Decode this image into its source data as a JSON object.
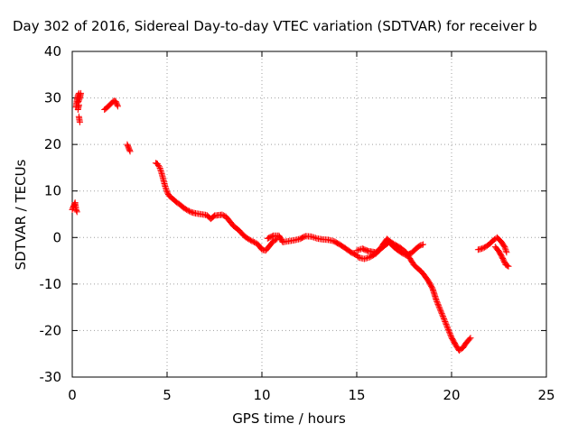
{
  "chart_data": {
    "type": "scatter",
    "title": "Day 302 of 2016, Sidereal Day-to-day VTEC variation (SDTVAR) for receiver b",
    "xlabel": "GPS time / hours",
    "ylabel": "SDTVAR / TECUs",
    "xlim": [
      0,
      25
    ],
    "ylim": [
      -30,
      40
    ],
    "xticks": [
      "0",
      "5",
      "10",
      "15",
      "20",
      "25"
    ],
    "yticks": [
      "40",
      "30",
      "20",
      "10",
      "0",
      "-10",
      "-20",
      "-30"
    ],
    "grid": true,
    "marker": "plus",
    "color": "#ff0000",
    "series": [
      {
        "points": [
          [
            0.0,
            6.0
          ],
          [
            0.05,
            6.5
          ],
          [
            0.1,
            7.0
          ],
          [
            0.15,
            7.5
          ],
          [
            0.2,
            6.0
          ],
          [
            0.25,
            5.5
          ],
          [
            0.2,
            28.0
          ],
          [
            0.25,
            29.5
          ],
          [
            0.3,
            30.5
          ],
          [
            0.35,
            31.0
          ],
          [
            0.3,
            27.5
          ],
          [
            0.35,
            28.5
          ],
          [
            0.3,
            29.0
          ],
          [
            0.4,
            30.0
          ],
          [
            0.45,
            31.0
          ],
          [
            0.35,
            26.0
          ],
          [
            0.4,
            24.8
          ],
          [
            1.7,
            27.5
          ],
          [
            1.8,
            27.8
          ],
          [
            1.9,
            28.2
          ],
          [
            2.0,
            28.6
          ],
          [
            2.1,
            29.0
          ],
          [
            2.2,
            29.4
          ],
          [
            2.3,
            29.2
          ],
          [
            2.4,
            28.2
          ],
          [
            2.9,
            20.0
          ],
          [
            2.95,
            19.5
          ],
          [
            3.0,
            19.0
          ],
          [
            3.05,
            18.5
          ],
          [
            4.4,
            16.0
          ],
          [
            4.5,
            15.8
          ],
          [
            4.6,
            15.2
          ],
          [
            4.7,
            14.0
          ],
          [
            4.8,
            12.5
          ],
          [
            4.9,
            11.0
          ],
          [
            5.0,
            9.8
          ],
          [
            5.1,
            9.0
          ],
          [
            5.3,
            8.3
          ],
          [
            5.5,
            7.6
          ],
          [
            5.7,
            7.0
          ],
          [
            5.9,
            6.3
          ],
          [
            6.1,
            5.8
          ],
          [
            6.3,
            5.4
          ],
          [
            6.5,
            5.2
          ],
          [
            6.8,
            5.0
          ],
          [
            7.1,
            4.8
          ],
          [
            7.3,
            4.0
          ],
          [
            7.5,
            4.7
          ],
          [
            7.7,
            4.8
          ],
          [
            7.9,
            4.9
          ],
          [
            8.1,
            4.5
          ],
          [
            8.3,
            3.5
          ],
          [
            8.5,
            2.5
          ],
          [
            8.8,
            1.5
          ],
          [
            9.0,
            0.6
          ],
          [
            9.2,
            -0.1
          ],
          [
            9.4,
            -0.6
          ],
          [
            9.6,
            -1.0
          ],
          [
            9.8,
            -1.5
          ],
          [
            10.0,
            -2.6
          ],
          [
            10.2,
            -2.8
          ],
          [
            10.4,
            -1.8
          ],
          [
            10.6,
            -0.8
          ],
          [
            10.8,
            -0.3
          ],
          [
            10.3,
            -0.2
          ],
          [
            10.6,
            0.4
          ],
          [
            10.9,
            0.4
          ],
          [
            11.1,
            -1.0
          ],
          [
            11.4,
            -0.8
          ],
          [
            11.7,
            -0.6
          ],
          [
            12.0,
            -0.3
          ],
          [
            12.3,
            0.3
          ],
          [
            12.6,
            0.2
          ],
          [
            12.9,
            -0.2
          ],
          [
            13.2,
            -0.4
          ],
          [
            13.5,
            -0.5
          ],
          [
            13.8,
            -0.8
          ],
          [
            14.1,
            -1.5
          ],
          [
            14.4,
            -2.3
          ],
          [
            14.7,
            -3.2
          ],
          [
            15.0,
            -3.8
          ],
          [
            15.1,
            -4.3
          ],
          [
            15.4,
            -4.6
          ],
          [
            15.7,
            -4.2
          ],
          [
            16.0,
            -3.5
          ],
          [
            16.2,
            -2.7
          ],
          [
            16.4,
            -1.4
          ],
          [
            16.6,
            -0.3
          ],
          [
            16.8,
            -1.0
          ],
          [
            17.0,
            -1.5
          ],
          [
            17.3,
            -2.2
          ],
          [
            17.6,
            -3.2
          ],
          [
            17.8,
            -4.5
          ],
          [
            18.0,
            -5.8
          ],
          [
            18.2,
            -6.6
          ],
          [
            18.4,
            -7.3
          ],
          [
            18.6,
            -8.3
          ],
          [
            18.8,
            -9.5
          ],
          [
            19.0,
            -11.0
          ],
          [
            19.2,
            -13.5
          ],
          [
            19.4,
            -15.5
          ],
          [
            19.6,
            -17.5
          ],
          [
            19.8,
            -19.5
          ],
          [
            20.0,
            -21.5
          ],
          [
            20.2,
            -23.0
          ],
          [
            20.4,
            -24.3
          ],
          [
            20.6,
            -23.7
          ],
          [
            20.8,
            -22.5
          ],
          [
            21.0,
            -21.6
          ],
          [
            15.0,
            -2.8
          ],
          [
            15.3,
            -2.4
          ],
          [
            15.6,
            -2.9
          ],
          [
            16.0,
            -3.2
          ],
          [
            16.4,
            -2.0
          ],
          [
            16.7,
            -1.0
          ],
          [
            17.0,
            -2.2
          ],
          [
            17.3,
            -3.1
          ],
          [
            17.6,
            -3.8
          ],
          [
            17.9,
            -3.3
          ],
          [
            18.1,
            -2.5
          ],
          [
            18.3,
            -1.8
          ],
          [
            18.5,
            -1.5
          ],
          [
            21.4,
            -2.6
          ],
          [
            21.6,
            -2.4
          ],
          [
            21.8,
            -2.0
          ],
          [
            22.0,
            -1.4
          ],
          [
            22.2,
            -0.6
          ],
          [
            22.4,
            0.0
          ],
          [
            22.6,
            -0.8
          ],
          [
            22.8,
            -2.0
          ],
          [
            22.9,
            -3.2
          ],
          [
            22.3,
            -2.0
          ],
          [
            22.5,
            -3.0
          ],
          [
            22.7,
            -4.5
          ],
          [
            22.85,
            -5.8
          ],
          [
            23.0,
            -6.2
          ]
        ]
      }
    ]
  }
}
